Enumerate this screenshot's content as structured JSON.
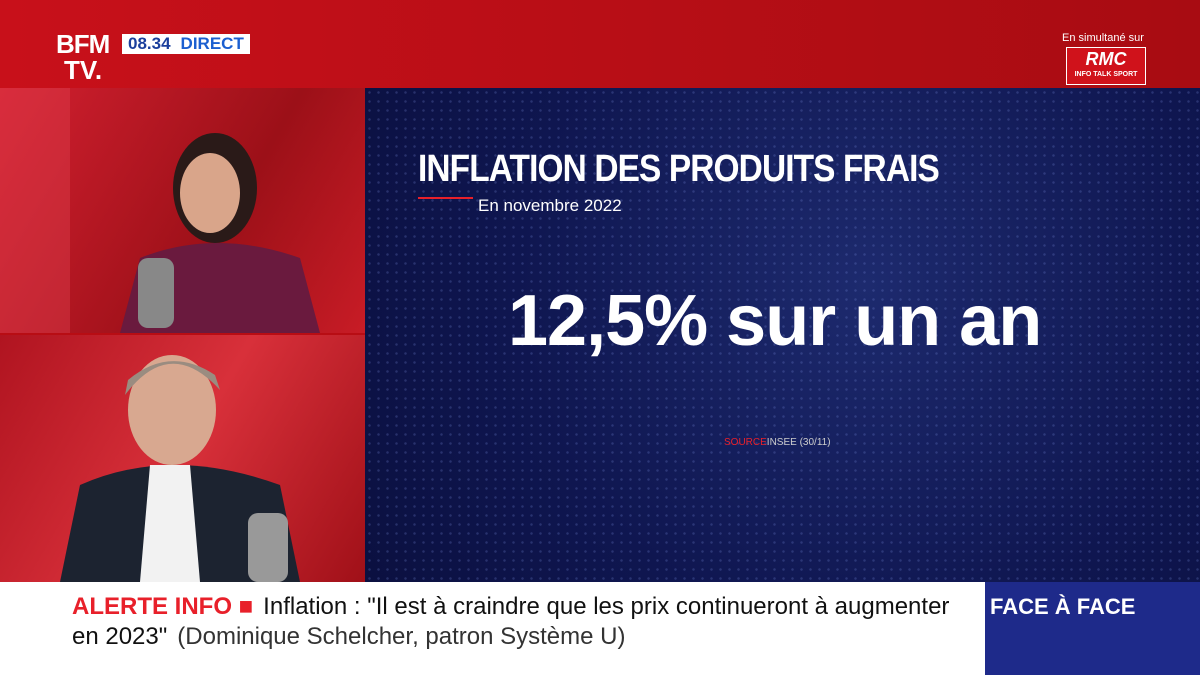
{
  "header": {
    "logo_top": "BFM",
    "logo_bottom": "TV.",
    "time": "08.34",
    "live": "DIRECT",
    "simulcast": "En simultané sur",
    "partner": "RMC",
    "partner_tagline": "INFO TALK SPORT"
  },
  "graphic": {
    "title": "INFLATION DES PRODUITS FRAIS",
    "subtitle": "En novembre 2022",
    "headline": "12,5% sur un an",
    "source_label": "SOURCE",
    "source": "INSEE (30/11)"
  },
  "ticker": {
    "alert": "ALERTE INFO ■",
    "text": "Inflation : \"Il est à craindre que les prix continueront à augmenter en 2023\"",
    "attribution": "(Dominique Schelcher, patron Système U)",
    "program": "FACE À FACE"
  }
}
